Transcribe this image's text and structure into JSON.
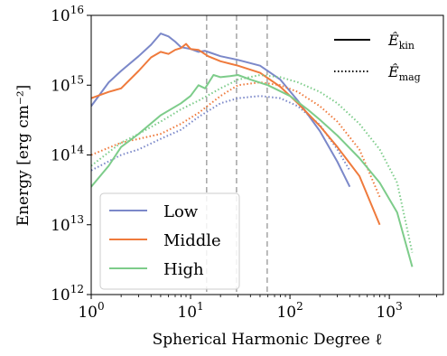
{
  "chart_data": {
    "type": "line",
    "x_scale": "log",
    "y_scale": "log",
    "xlabel": "Spherical Harmonic Degree ℓ",
    "ylabel": "Energy [erg cm⁻²]",
    "xlim": [
      1,
      3500
    ],
    "ylim": [
      1000000000000.0,
      1e+16
    ],
    "x_ticks": [
      {
        "value": 1,
        "base": "10",
        "exp": "0"
      },
      {
        "value": 10,
        "base": "10",
        "exp": "1"
      },
      {
        "value": 100,
        "base": "10",
        "exp": "2"
      },
      {
        "value": 1000,
        "base": "10",
        "exp": "3"
      }
    ],
    "y_ticks": [
      {
        "value": 1000000000000.0,
        "base": "10",
        "exp": "12"
      },
      {
        "value": 10000000000000.0,
        "base": "10",
        "exp": "13"
      },
      {
        "value": 100000000000000.0,
        "base": "10",
        "exp": "14"
      },
      {
        "value": 1000000000000000.0,
        "base": "10",
        "exp": "15"
      },
      {
        "value": 1e+16,
        "base": "10",
        "exp": "16"
      }
    ],
    "vlines": [
      14.5,
      29,
      59
    ],
    "style_legend": [
      {
        "label_main": "Ê",
        "label_sub": "kin",
        "dash": "solid"
      },
      {
        "label_main": "Ê",
        "label_sub": "mag",
        "dash": "dotted"
      }
    ],
    "series_legend_position": "lower-left",
    "style_legend_position": "upper-right",
    "series": [
      {
        "name": "Low",
        "color": "#7b88c9",
        "kin": {
          "x": [
            1,
            1.5,
            2,
            3,
            4,
            5,
            6,
            7,
            8,
            10,
            12,
            14,
            16,
            20,
            30,
            50,
            80,
            120,
            200,
            300,
            400
          ],
          "y": [
            500000000000000.0,
            1100000000000000.0,
            1600000000000000.0,
            2600000000000000.0,
            3800000000000000.0,
            5500000000000000.0,
            5000000000000000.0,
            4200000000000000.0,
            3500000000000000.0,
            3300000000000000.0,
            3000000000000000.0,
            3100000000000000.0,
            2900000000000000.0,
            2600000000000000.0,
            2300000000000000.0,
            1900000000000000.0,
            1200000000000000.0,
            600000000000000.0,
            220000000000000.0,
            80000000000000.0,
            35000000000000.0
          ]
        },
        "mag": {
          "x": [
            1,
            2,
            3,
            5,
            8,
            12,
            20,
            30,
            50,
            80,
            120,
            200,
            300,
            400
          ],
          "y": [
            60000000000000.0,
            100000000000000.0,
            120000000000000.0,
            170000000000000.0,
            230000000000000.0,
            350000000000000.0,
            550000000000000.0,
            650000000000000.0,
            700000000000000.0,
            650000000000000.0,
            500000000000000.0,
            270000000000000.0,
            120000000000000.0,
            60000000000000.0
          ]
        }
      },
      {
        "name": "Middle",
        "color": "#ef7a3c",
        "kin": {
          "x": [
            1,
            1.5,
            2,
            3,
            4,
            5,
            6,
            7,
            8,
            9,
            10,
            12,
            15,
            20,
            30,
            50,
            80,
            120,
            200,
            300,
            500,
            800
          ],
          "y": [
            650000000000000.0,
            800000000000000.0,
            900000000000000.0,
            1600000000000000.0,
            2500000000000000.0,
            3000000000000000.0,
            2800000000000000.0,
            3200000000000000.0,
            3400000000000000.0,
            3900000000000000.0,
            3300000000000000.0,
            3200000000000000.0,
            2600000000000000.0,
            2200000000000000.0,
            1900000000000000.0,
            1500000000000000.0,
            950000000000000.0,
            550000000000000.0,
            260000000000000.0,
            130000000000000.0,
            50000000000000.0,
            10000000000000.0
          ]
        },
        "mag": {
          "x": [
            1,
            2,
            3,
            5,
            8,
            12,
            20,
            30,
            50,
            80,
            120,
            200,
            300,
            500,
            800
          ],
          "y": [
            100000000000000.0,
            150000000000000.0,
            170000000000000.0,
            200000000000000.0,
            280000000000000.0,
            400000000000000.0,
            700000000000000.0,
            1000000000000000.0,
            1100000000000000.0,
            1000000000000000.0,
            800000000000000.0,
            500000000000000.0,
            300000000000000.0,
            120000000000000.0,
            25000000000000.0
          ]
        }
      },
      {
        "name": "High",
        "color": "#7dcc8a",
        "kin": {
          "x": [
            1,
            1.5,
            2,
            3,
            5,
            8,
            10,
            12,
            14,
            17,
            20,
            25,
            30,
            40,
            60,
            100,
            150,
            200,
            300,
            500,
            800,
            1200,
            1700
          ],
          "y": [
            35000000000000.0,
            70000000000000.0,
            130000000000000.0,
            200000000000000.0,
            370000000000000.0,
            550000000000000.0,
            700000000000000.0,
            1000000000000000.0,
            900000000000000.0,
            1400000000000000.0,
            1300000000000000.0,
            1350000000000000.0,
            1400000000000000.0,
            1200000000000000.0,
            1000000000000000.0,
            700000000000000.0,
            450000000000000.0,
            320000000000000.0,
            190000000000000.0,
            90000000000000.0,
            40000000000000.0,
            15000000000000.0,
            2500000000000.0
          ]
        },
        "mag": {
          "x": [
            1,
            2,
            3,
            5,
            8,
            12,
            20,
            30,
            50,
            80,
            120,
            200,
            300,
            500,
            800,
            1200,
            1700
          ],
          "y": [
            70000000000000.0,
            150000000000000.0,
            200000000000000.0,
            300000000000000.0,
            450000000000000.0,
            600000000000000.0,
            900000000000000.0,
            1200000000000000.0,
            1400000000000000.0,
            1300000000000000.0,
            1100000000000000.0,
            800000000000000.0,
            550000000000000.0,
            280000000000000.0,
            120000000000000.0,
            40000000000000.0,
            4000000000000.0
          ]
        }
      }
    ]
  }
}
